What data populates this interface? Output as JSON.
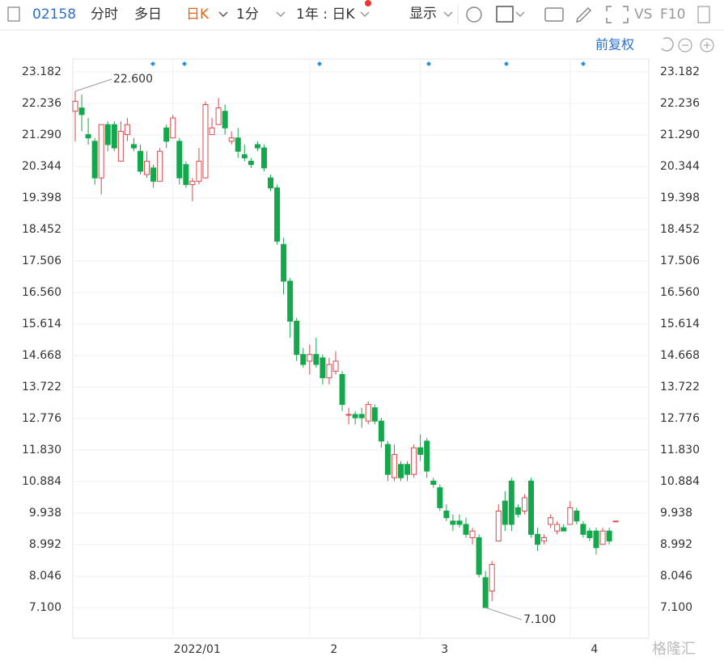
{
  "toolbar": {
    "code": "02158",
    "tabs": [
      "分时",
      "多日",
      "日K",
      "1分"
    ],
    "period": "1年 : 日K",
    "display": "显示",
    "vs": "VS",
    "f10": "F10"
  },
  "adjust": "前复权",
  "watermark": "格隆汇",
  "chart_data": {
    "type": "candlestick",
    "categories": [
      null,
      null,
      null,
      null,
      null,
      null,
      null,
      null,
      null,
      null,
      null,
      null,
      null,
      null,
      null,
      "2022/01",
      null,
      null,
      null,
      null,
      null,
      null,
      null,
      null,
      null,
      null,
      null,
      null,
      null,
      null,
      null,
      null,
      null,
      null,
      null,
      null,
      "2",
      null,
      null,
      null,
      null,
      null,
      null,
      null,
      null,
      null,
      null,
      null,
      null,
      null,
      null,
      null,
      null,
      "3",
      null,
      null,
      null,
      null,
      null,
      null,
      null,
      null,
      null,
      null,
      null,
      null,
      null,
      null,
      null,
      null,
      null,
      null,
      null,
      null,
      null,
      null,
      "4",
      null,
      null,
      null,
      null,
      null,
      null,
      null
    ],
    "open": [
      22.0,
      22.1,
      21.3,
      21.1,
      20.0,
      21.6,
      21.6,
      20.5,
      21.3,
      21.0,
      20.8,
      20.1,
      20.3,
      19.9,
      21.5,
      21.2,
      21.1,
      20.4,
      19.8,
      19.9,
      20.0,
      21.3,
      21.6,
      22.0,
      21.1,
      21.2,
      20.7,
      20.5,
      21.0,
      20.9,
      20.0,
      19.7,
      18.0,
      16.9,
      15.7,
      14.7,
      14.5,
      14.7,
      14.6,
      14.0,
      14.2,
      14.1,
      12.9,
      12.9,
      12.9,
      12.7,
      13.1,
      12.7,
      12.0,
      11.0,
      11.4,
      11.4,
      11.1,
      11.9,
      12.1,
      10.9,
      10.7,
      10.0,
      9.7,
      9.7,
      9.6,
      9.2,
      9.2,
      8.0,
      7.6,
      9.1,
      10.3,
      10.9,
      10.1,
      10.0,
      10.9,
      9.3,
      9.1,
      9.6,
      9.4,
      9.5,
      9.6,
      10.0,
      9.6,
      9.4,
      9.4,
      9.0,
      9.4,
      9.7
    ],
    "high": [
      22.6,
      22.5,
      21.8,
      21.2,
      21.6,
      21.7,
      21.7,
      21.7,
      21.8,
      21.2,
      21.0,
      20.8,
      20.4,
      20.9,
      21.6,
      21.9,
      21.2,
      20.5,
      20.0,
      20.9,
      22.3,
      21.8,
      22.4,
      22.2,
      21.4,
      21.5,
      21.0,
      20.6,
      21.1,
      21.0,
      20.1,
      19.8,
      18.2,
      17.0,
      15.8,
      14.9,
      15.0,
      15.2,
      14.7,
      14.6,
      14.8,
      14.2,
      13.1,
      13.0,
      13.1,
      13.3,
      13.2,
      12.8,
      12.1,
      12.0,
      11.5,
      11.5,
      12.0,
      12.3,
      12.2,
      11.0,
      10.8,
      10.2,
      9.9,
      9.9,
      9.8,
      9.5,
      9.3,
      8.2,
      8.5,
      10.2,
      10.6,
      11.0,
      10.2,
      10.5,
      11.0,
      9.5,
      9.3,
      9.9,
      9.7,
      9.6,
      10.3,
      10.1,
      9.7,
      9.5,
      9.5,
      9.5,
      9.5,
      9.7
    ],
    "low": [
      21.1,
      21.4,
      21.0,
      19.8,
      19.5,
      20.8,
      20.8,
      20.5,
      21.1,
      20.8,
      20.1,
      20.0,
      19.7,
      19.9,
      20.9,
      21.2,
      19.8,
      19.7,
      19.3,
      19.8,
      20.0,
      21.3,
      21.6,
      21.3,
      21.0,
      20.6,
      20.5,
      20.3,
      20.8,
      20.2,
      19.6,
      18.0,
      16.5,
      15.2,
      14.5,
      14.3,
      14.1,
      14.3,
      13.8,
      13.8,
      14.1,
      13.0,
      12.6,
      12.6,
      12.5,
      12.6,
      12.6,
      11.9,
      10.9,
      10.9,
      10.9,
      10.9,
      11.0,
      11.5,
      11.0,
      10.7,
      10.0,
      9.7,
      9.4,
      9.5,
      9.2,
      9.0,
      8.0,
      7.1,
      7.3,
      9.1,
      9.4,
      9.4,
      9.8,
      9.9,
      9.2,
      8.8,
      9.0,
      9.5,
      9.3,
      9.4,
      9.6,
      9.6,
      9.2,
      9.1,
      8.7,
      9.0,
      9.0,
      9.7
    ],
    "close": [
      22.3,
      21.9,
      21.2,
      20.0,
      21.6,
      21.0,
      20.9,
      21.4,
      21.6,
      20.9,
      20.2,
      20.5,
      19.9,
      20.8,
      21.1,
      21.8,
      20.0,
      19.8,
      19.9,
      20.5,
      22.2,
      21.5,
      22.1,
      21.5,
      21.2,
      20.8,
      20.6,
      20.4,
      20.9,
      20.3,
      19.7,
      18.1,
      16.9,
      15.7,
      14.7,
      14.4,
      14.7,
      14.4,
      14.0,
      14.4,
      14.5,
      13.2,
      12.9,
      12.8,
      12.8,
      13.2,
      12.7,
      12.1,
      11.1,
      11.7,
      11.0,
      11.1,
      11.9,
      11.7,
      11.2,
      10.8,
      10.1,
      9.8,
      9.6,
      9.6,
      9.3,
      9.4,
      8.1,
      7.1,
      8.4,
      10.0,
      9.6,
      9.6,
      9.9,
      10.4,
      9.3,
      9.0,
      9.2,
      9.8,
      9.6,
      9.4,
      10.1,
      9.7,
      9.3,
      9.2,
      8.9,
      9.4,
      9.1,
      9.7
    ],
    "up_color": "#e0474c",
    "down_color": "#14a84c",
    "ylim": [
      6.18,
      23.57
    ],
    "yticks": [
      23.182,
      22.236,
      {
        "value": 21.29,
        "label": "21.290"
      },
      20.344,
      19.398,
      18.452,
      17.506,
      {
        "value": 16.56,
        "label": "16.560"
      },
      15.614,
      14.668,
      13.722,
      12.776,
      {
        "value": 11.83,
        "label": "11.830"
      },
      10.884,
      9.938,
      8.992,
      8.046,
      {
        "value": 7.1,
        "label": "7.100"
      }
    ],
    "grid": true,
    "annotations": [
      {
        "text": "22.600",
        "index": 0,
        "value": 22.6
      },
      {
        "text": "7.100",
        "index": 63,
        "value": 7.1
      }
    ]
  }
}
